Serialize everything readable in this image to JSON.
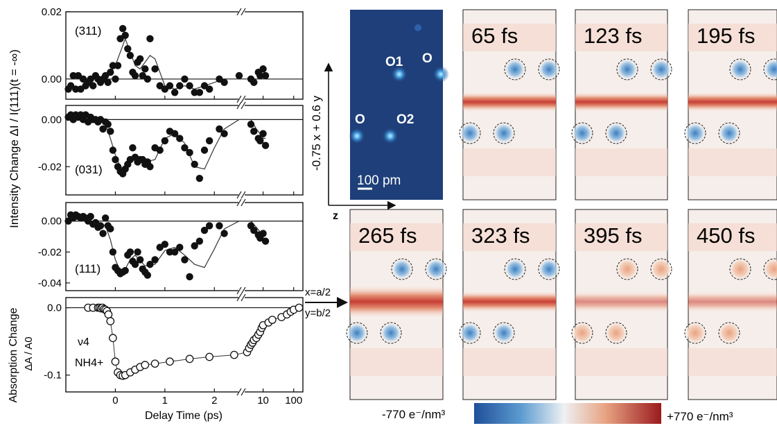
{
  "chart_data": [
    {
      "type": "scatter",
      "label": "(311)",
      "ylim": [
        -0.006,
        0.02
      ],
      "ytick_labels": [
        "0.02",
        "0.00"
      ],
      "x": [
        -0.95,
        -0.9,
        -0.85,
        -0.8,
        -0.75,
        -0.7,
        -0.65,
        -0.6,
        -0.55,
        -0.5,
        -0.45,
        -0.4,
        -0.35,
        -0.3,
        -0.25,
        -0.2,
        -0.15,
        -0.1,
        -0.05,
        0.0,
        0.05,
        0.1,
        0.15,
        0.2,
        0.25,
        0.3,
        0.35,
        0.4,
        0.45,
        0.5,
        0.55,
        0.6,
        0.65,
        0.7,
        0.8,
        0.9,
        1.0,
        1.1,
        1.2,
        1.3,
        1.4,
        1.5,
        1.6,
        1.7,
        1.8,
        1.9,
        2.1,
        2.2,
        2.5,
        4,
        5,
        7,
        8,
        10,
        12
      ],
      "y": [
        -0.003,
        -0.002,
        0.001,
        -0.003,
        0.001,
        -0.003,
        0.0,
        -0.002,
        -0.001,
        0.0,
        -0.002,
        0.001,
        0.0,
        -0.001,
        0.0,
        0.001,
        -0.001,
        0.002,
        0.004,
        0.0,
        0.004,
        0.012,
        0.015,
        0.013,
        0.009,
        0.007,
        0.002,
        0.001,
        0.005,
        0.006,
        0.001,
        0.003,
        0.0,
        0.012,
        0.003,
        -0.002,
        -0.003,
        -0.002,
        -0.004,
        -0.002,
        0.0,
        -0.002,
        -0.004,
        -0.004,
        -0.002,
        -0.003,
        0.0,
        -0.001,
        0.001,
        0.0,
        -0.001,
        0.002,
        0.001,
        0.003,
        0.001
      ],
      "fit_x": [
        -1,
        -0.3,
        -0.1,
        0.0,
        0.1,
        0.2,
        0.3,
        0.4,
        0.5,
        0.6,
        0.7,
        0.8,
        0.9,
        1.0,
        1.2,
        1.4,
        1.6,
        1.8,
        2.0,
        2.2,
        2.4,
        2.5,
        4,
        8,
        12
      ],
      "fit_y": [
        0,
        0,
        0.002,
        0.004,
        0.008,
        0.012,
        0.008,
        0.004,
        0.003,
        0.005,
        0.007,
        0.006,
        0.002,
        -0.002,
        -0.003,
        -0.002,
        -0.003,
        -0.002,
        -0.001,
        0,
        0,
        0,
        0,
        0,
        0
      ]
    },
    {
      "type": "scatter",
      "label": "(031)",
      "ylim": [
        -0.032,
        0.006
      ],
      "ytick_labels": [
        "0.00",
        "-0.02"
      ],
      "x": [
        -0.95,
        -0.9,
        -0.85,
        -0.8,
        -0.75,
        -0.7,
        -0.65,
        -0.6,
        -0.55,
        -0.5,
        -0.45,
        -0.4,
        -0.35,
        -0.3,
        -0.25,
        -0.2,
        -0.15,
        -0.1,
        -0.05,
        0.0,
        0.05,
        0.1,
        0.15,
        0.2,
        0.25,
        0.3,
        0.35,
        0.4,
        0.45,
        0.5,
        0.55,
        0.6,
        0.65,
        0.7,
        0.8,
        0.9,
        1.0,
        1.1,
        1.2,
        1.3,
        1.4,
        1.5,
        1.6,
        1.7,
        1.8,
        1.9,
        2.1,
        2.2,
        4,
        5,
        7,
        8,
        10,
        12
      ],
      "y": [
        0.001,
        0.002,
        0.0,
        0.002,
        0.001,
        0.002,
        0.0,
        0.002,
        -0.001,
        0.001,
        0.0,
        0.0,
        -0.001,
        0.0,
        -0.004,
        -0.001,
        -0.002,
        -0.005,
        -0.013,
        -0.017,
        -0.02,
        -0.022,
        -0.023,
        -0.021,
        -0.019,
        -0.017,
        -0.012,
        -0.016,
        -0.018,
        -0.017,
        -0.017,
        -0.019,
        -0.018,
        -0.02,
        -0.012,
        -0.013,
        -0.009,
        -0.005,
        -0.006,
        -0.008,
        -0.012,
        -0.014,
        -0.019,
        -0.025,
        -0.013,
        -0.009,
        -0.004,
        -0.006,
        -0.002,
        -0.005,
        -0.008,
        -0.009,
        -0.006,
        -0.011
      ],
      "fit_x": [
        -1,
        -0.4,
        -0.2,
        -0.1,
        0.0,
        0.1,
        0.2,
        0.3,
        0.4,
        0.6,
        0.8,
        1.0,
        1.2,
        1.4,
        1.6,
        1.8,
        2.0,
        2.2,
        2.5,
        4,
        6,
        8,
        10,
        12
      ],
      "fit_y": [
        0,
        0,
        -0.002,
        -0.008,
        -0.015,
        -0.02,
        -0.021,
        -0.017,
        -0.016,
        -0.018,
        -0.017,
        -0.008,
        -0.006,
        -0.01,
        -0.02,
        -0.021,
        -0.012,
        -0.004,
        0.0,
        0.0,
        -0.004,
        -0.006,
        -0.008,
        -0.008
      ]
    },
    {
      "type": "scatter",
      "label": "(111)",
      "ylim": [
        -0.045,
        0.012
      ],
      "ytick_labels": [
        "0.00",
        "-0.02",
        "-0.04"
      ],
      "x": [
        -0.95,
        -0.9,
        -0.85,
        -0.8,
        -0.75,
        -0.7,
        -0.65,
        -0.6,
        -0.55,
        -0.5,
        -0.45,
        -0.4,
        -0.35,
        -0.3,
        -0.25,
        -0.2,
        -0.15,
        -0.1,
        -0.05,
        0.0,
        0.05,
        0.1,
        0.15,
        0.2,
        0.25,
        0.3,
        0.35,
        0.4,
        0.45,
        0.5,
        0.55,
        0.6,
        0.65,
        0.7,
        0.8,
        0.9,
        1.0,
        1.1,
        1.2,
        1.3,
        1.4,
        1.5,
        1.6,
        1.7,
        1.8,
        1.9,
        2.1,
        2.2,
        4,
        5,
        7,
        8,
        10,
        12
      ],
      "y": [
        0.0,
        0.004,
        0.002,
        0.004,
        0.003,
        0.002,
        0.003,
        0.002,
        0.0,
        0.003,
        -0.002,
        -0.001,
        -0.004,
        -0.003,
        -0.008,
        0.002,
        -0.003,
        -0.005,
        -0.02,
        -0.03,
        -0.032,
        -0.034,
        -0.033,
        -0.032,
        -0.022,
        -0.02,
        -0.026,
        -0.028,
        -0.02,
        -0.025,
        -0.031,
        -0.033,
        -0.035,
        -0.028,
        -0.025,
        -0.017,
        -0.015,
        -0.02,
        -0.02,
        -0.017,
        -0.025,
        -0.036,
        -0.016,
        -0.013,
        -0.006,
        -0.003,
        -0.003,
        -0.008,
        -0.003,
        -0.006,
        -0.009,
        -0.011,
        -0.008,
        -0.013
      ],
      "fit_x": [
        -1,
        -0.4,
        -0.2,
        -0.1,
        0.0,
        0.1,
        0.2,
        0.3,
        0.4,
        0.6,
        0.8,
        1.0,
        1.2,
        1.4,
        1.6,
        1.8,
        2.0,
        2.2,
        2.5,
        4,
        6,
        8,
        10,
        12
      ],
      "fit_y": [
        0,
        0,
        -0.003,
        -0.012,
        -0.025,
        -0.032,
        -0.031,
        -0.025,
        -0.022,
        -0.029,
        -0.028,
        -0.019,
        -0.017,
        -0.022,
        -0.028,
        -0.03,
        -0.018,
        -0.005,
        0.0,
        0.0,
        -0.004,
        -0.007,
        -0.009,
        -0.009
      ]
    },
    {
      "type": "line",
      "ylim": [
        -0.125,
        0.015
      ],
      "ytick_labels": [
        "0.0",
        "-0.1"
      ],
      "annotation": [
        "ν4",
        "NH4+"
      ],
      "x": [
        -0.55,
        -0.45,
        -0.35,
        -0.32,
        -0.29,
        -0.26,
        -0.23,
        -0.2,
        -0.17,
        -0.14,
        -0.1,
        -0.05,
        0.0,
        0.05,
        0.1,
        0.15,
        0.2,
        0.3,
        0.4,
        0.5,
        0.6,
        0.8,
        1.1,
        1.5,
        1.9,
        2.4,
        3,
        3.5,
        4,
        4.5,
        5,
        6,
        7,
        8,
        9,
        10,
        15,
        20,
        40,
        60,
        80,
        100,
        150
      ],
      "y": [
        0.0,
        0.0,
        0.0,
        0.0,
        -0.001,
        0.0,
        -0.002,
        -0.003,
        -0.005,
        -0.01,
        -0.02,
        -0.045,
        -0.08,
        -0.096,
        -0.1,
        -0.101,
        -0.1,
        -0.096,
        -0.092,
        -0.088,
        -0.085,
        -0.083,
        -0.08,
        -0.076,
        -0.073,
        -0.07,
        -0.066,
        -0.06,
        -0.055,
        -0.052,
        -0.048,
        -0.045,
        -0.04,
        -0.036,
        -0.03,
        -0.026,
        -0.022,
        -0.018,
        -0.014,
        -0.01,
        -0.006,
        -0.003,
        0.0
      ]
    }
  ],
  "axis_labels": {
    "top_ylabel": "Intensity Change ΔI / I(111)(t = -∞)",
    "bottom_ylabel_line1": "Absorption Change",
    "bottom_ylabel_line2": "ΔA / A0",
    "xlabel": "Delay Time (ps)",
    "xtick_labels": [
      "0",
      "1",
      "2",
      "10",
      "100"
    ]
  },
  "maps": {
    "structure": {
      "atom_labels": [
        "O1",
        "O",
        "O",
        "O2"
      ],
      "scale_bar": "100 pm",
      "vertical_axis": "-0.75 x + 0.6 y",
      "horizontal_axis": "z"
    },
    "frames": [
      "65 fs",
      "123 fs",
      "195 fs",
      "265 fs",
      "323 fs",
      "395 fs",
      "450 fs"
    ],
    "pointer_label_line1": "x=a/2",
    "pointer_label_line2": "y=b/2",
    "colorbar_min": "-770 e⁻/nm³",
    "colorbar_max": "+770 e⁻/nm³",
    "colorbar_colors": [
      "#1f4f9a",
      "#5c9bd0",
      "#eef1f3",
      "#e8a483",
      "#9b1a1e"
    ]
  }
}
